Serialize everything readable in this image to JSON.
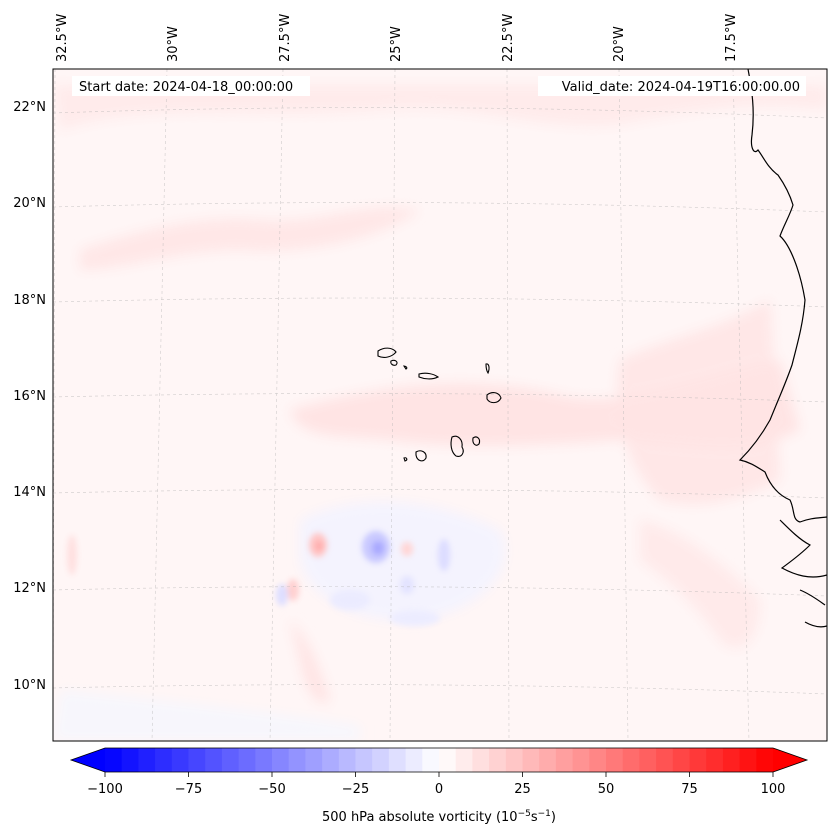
{
  "map": {
    "start_label": "Start date: 2024-04-18_00:00:00",
    "valid_label": "Valid_date: 2024-04-19T16:00:00.00",
    "lon_labels": [
      "32.5°W",
      "30°W",
      "27.5°W",
      "25°W",
      "22.5°W",
      "20°W",
      "17.5°W"
    ],
    "lat_labels": [
      "22°N",
      "20°N",
      "18°N",
      "16°N",
      "14°N",
      "12°N",
      "10°N"
    ],
    "background_color": "#fff6f6"
  },
  "colorbar": {
    "label_prefix": "500 hPa absolute vorticity (10",
    "label_sup1": "−5",
    "label_mid": "s",
    "label_sup2": "−1",
    "label_suffix": ")",
    "ticks": [
      "−100",
      "−75",
      "−50",
      "−25",
      "0",
      "25",
      "50",
      "75",
      "100"
    ],
    "min_color": "#0000ff",
    "mid_color": "#ffffff",
    "max_color": "#ff0000"
  }
}
